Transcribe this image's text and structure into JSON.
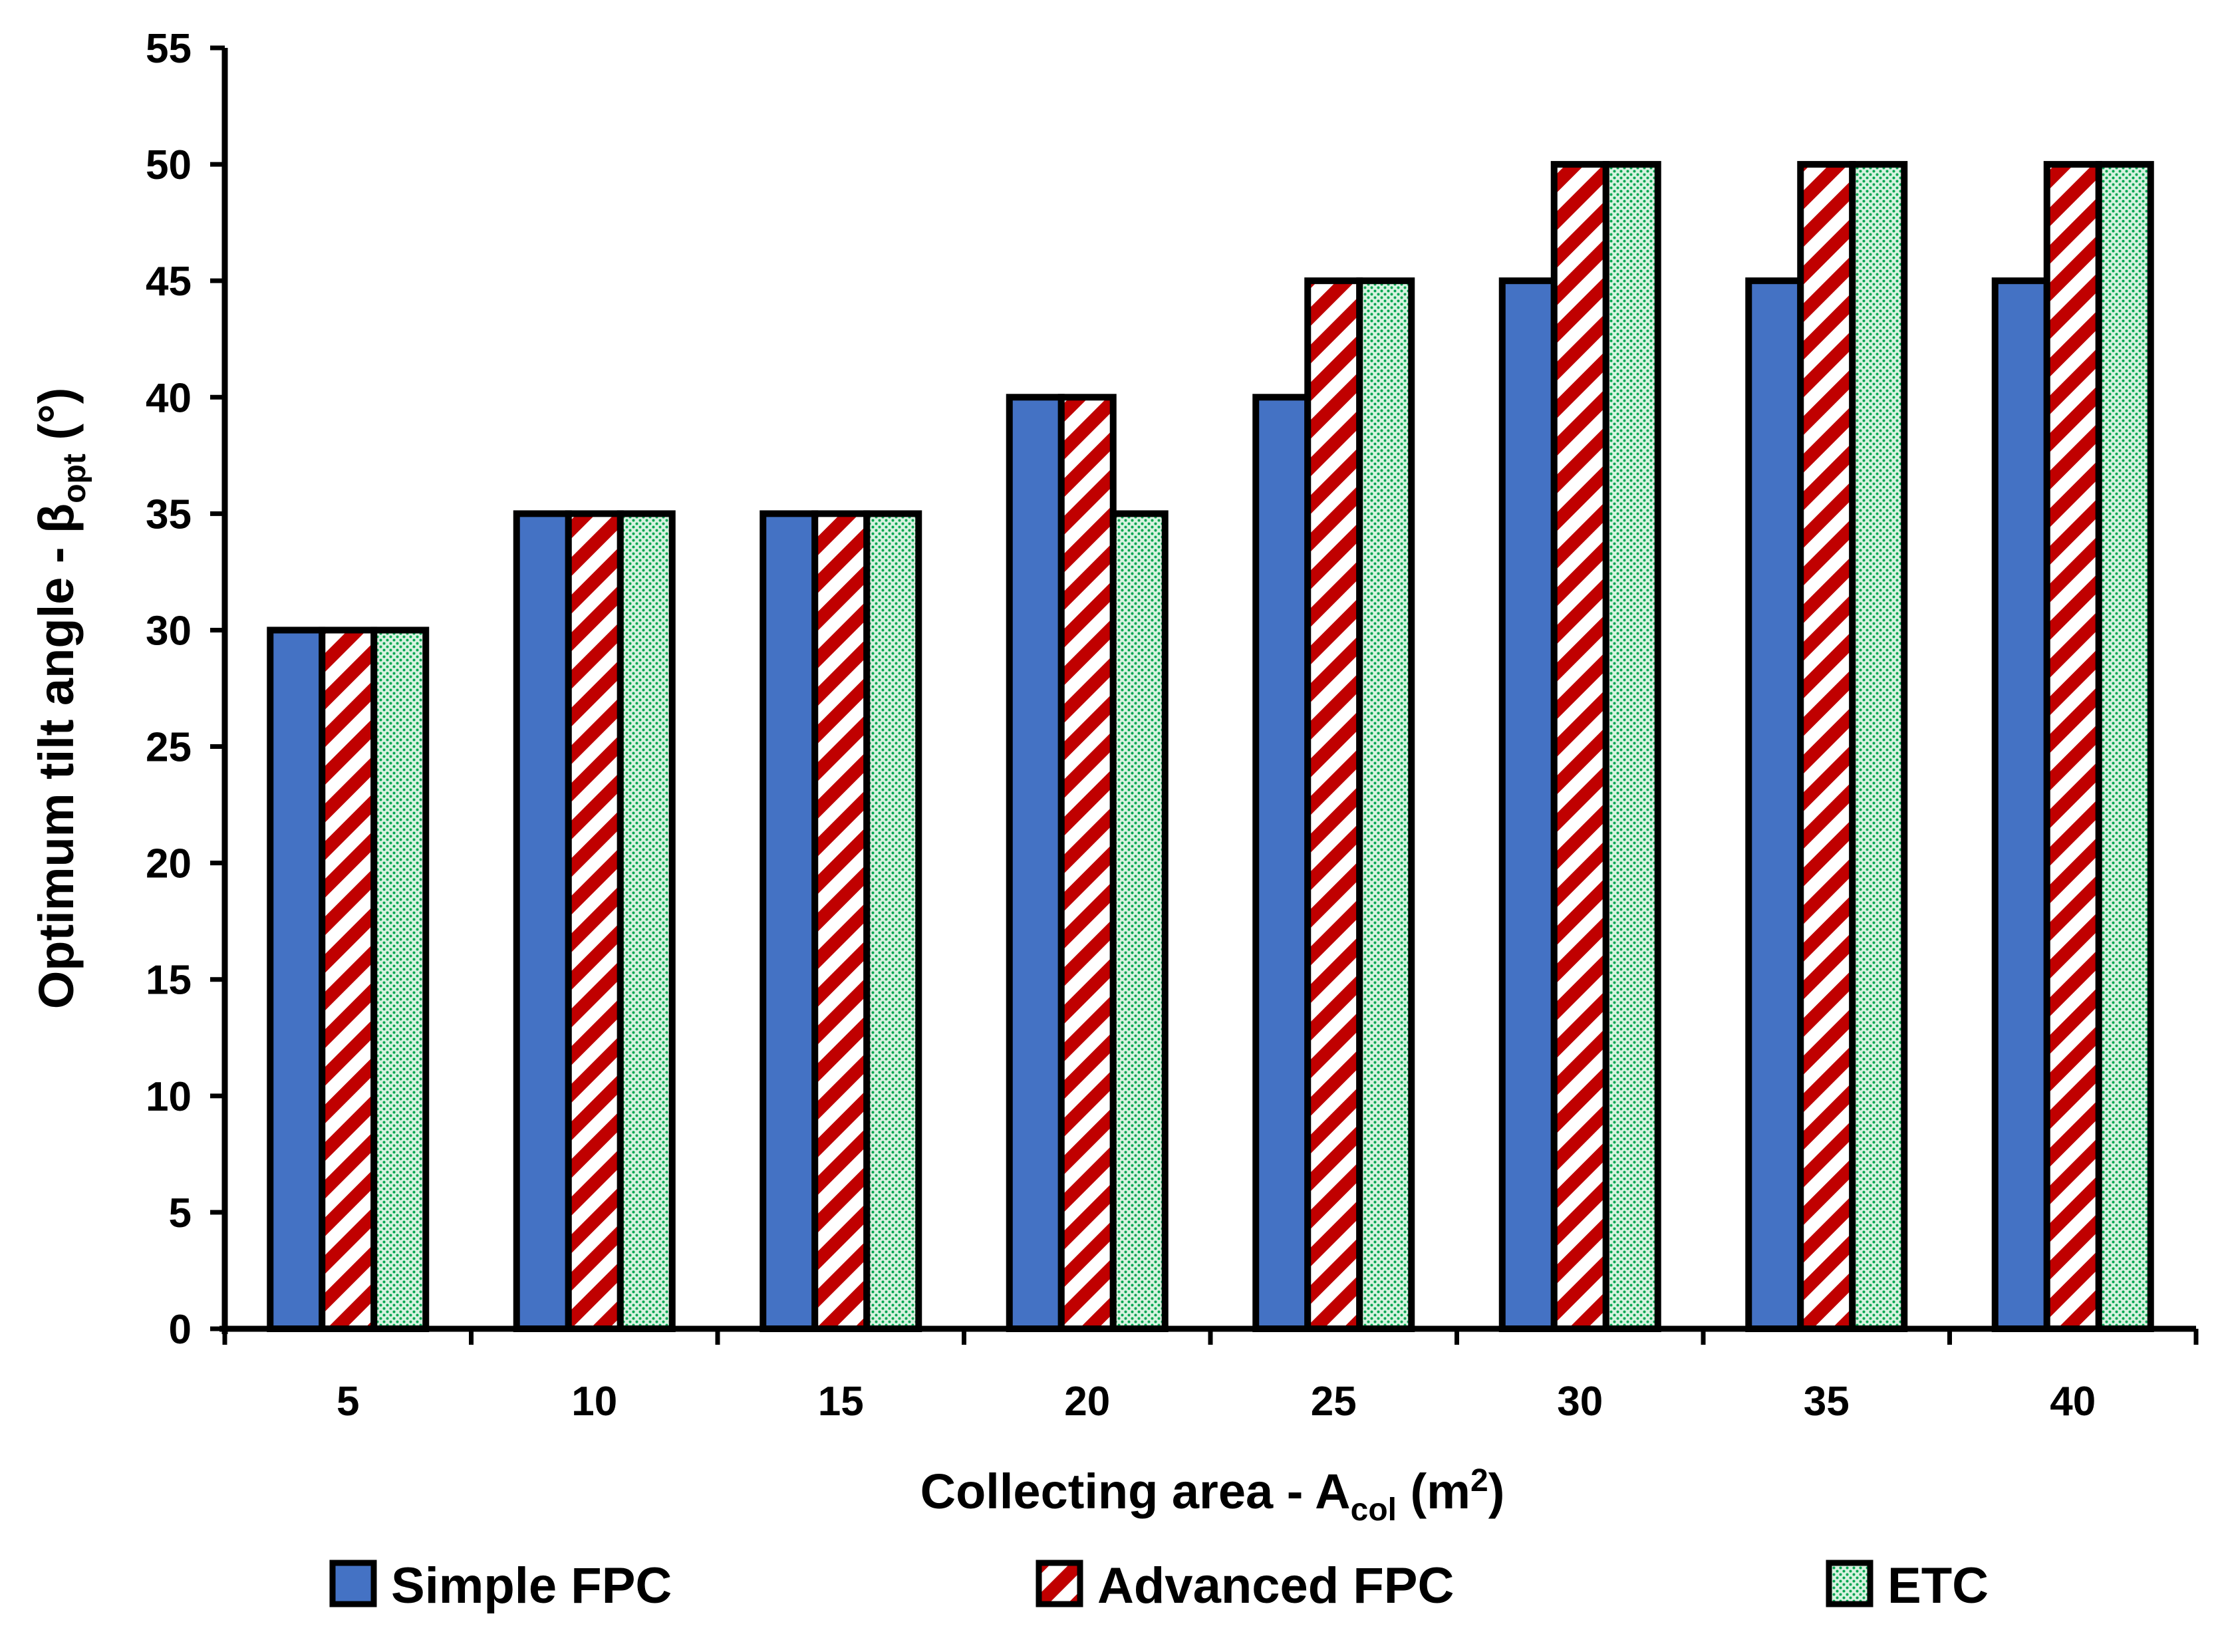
{
  "colors": {
    "simple_fpc": "#4472C4",
    "advanced_fpc_stripe": "#C00000",
    "etc_base": "#D8F2E0",
    "etc_dots": "#00A550",
    "outline": "#000000"
  },
  "chart_data": {
    "type": "bar",
    "categories": [
      "5",
      "10",
      "15",
      "20",
      "25",
      "30",
      "35",
      "40"
    ],
    "series": [
      {
        "name": "Simple FPC",
        "values": [
          30,
          35,
          35,
          40,
          40,
          45,
          45,
          45
        ],
        "fill": "solid-blue"
      },
      {
        "name": "Advanced FPC",
        "values": [
          30,
          35,
          35,
          40,
          45,
          50,
          50,
          50
        ],
        "fill": "red-diagonal-stripes"
      },
      {
        "name": "ETC",
        "values": [
          30,
          35,
          35,
          35,
          45,
          50,
          50,
          50
        ],
        "fill": "green-dots"
      }
    ],
    "ylim": [
      0,
      55
    ],
    "yticks": [
      0,
      5,
      10,
      15,
      20,
      25,
      30,
      35,
      40,
      45,
      50,
      55
    ],
    "xlabel": {
      "main": "Collecting area - A",
      "subscript": "col",
      "after_sub": " (m",
      "superscript": "2",
      "close": ")"
    },
    "ylabel": {
      "main": "Optimum tilt angle - β",
      "subscript": "opt",
      "after_sub": " (°)"
    },
    "grid": false,
    "legend_position": "bottom"
  }
}
